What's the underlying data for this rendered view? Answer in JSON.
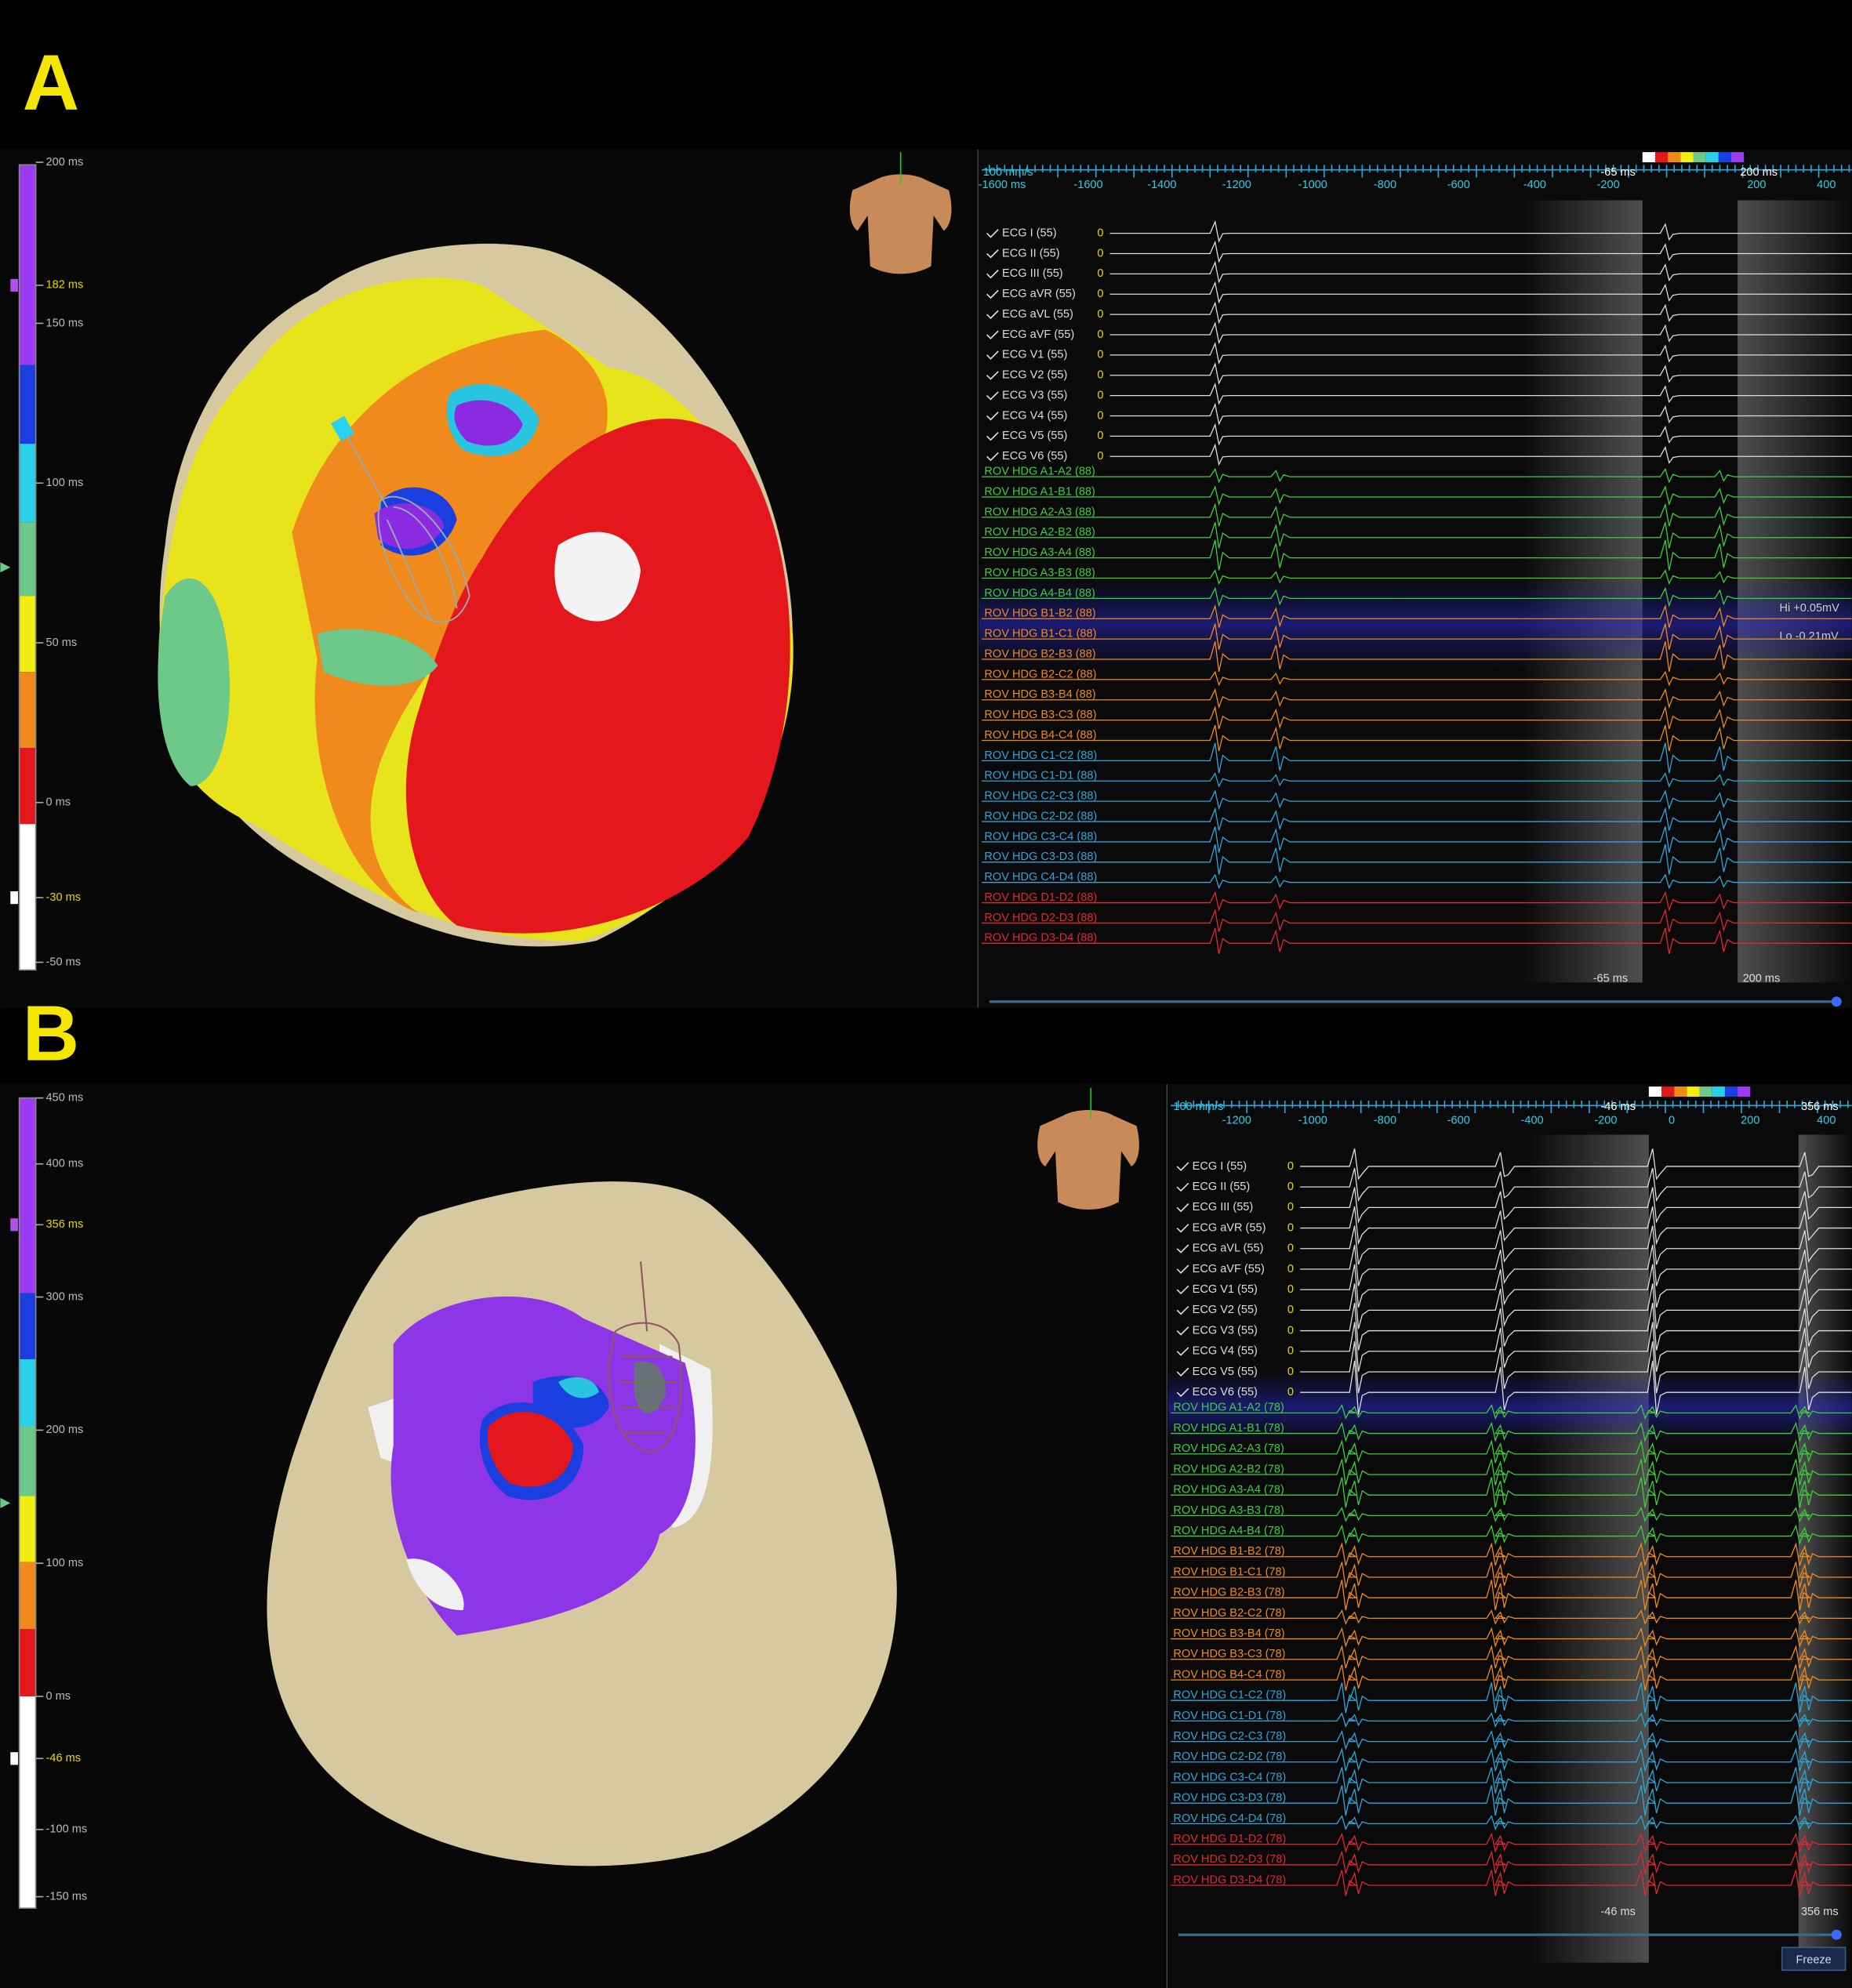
{
  "panels": [
    {
      "label": "A",
      "scale": [
        "200 ms",
        "182 ms",
        "150 ms",
        "100 ms",
        "50 ms",
        "0 ms",
        "-30 ms",
        "-50 ms"
      ],
      "speed": "100 mm/s",
      "time_ticks": [
        "-1600 ms",
        "-1600",
        "-1400",
        "-1200",
        "-1000",
        "-800",
        "-600",
        "-400",
        "-200",
        "200",
        "400"
      ],
      "window": [
        "-65 ms",
        "200 ms"
      ],
      "hi": "Hi +0.05mV",
      "lo": "Lo -0.21mV",
      "ecg_leads": [
        "ECG I (55)",
        "ECG II (55)",
        "ECG III (55)",
        "ECG aVR (55)",
        "ECG aVL (55)",
        "ECG aVF (55)",
        "ECG V1 (55)",
        "ECG V2 (55)",
        "ECG V3 (55)",
        "ECG V4 (55)",
        "ECG V5 (55)",
        "ECG V6 (55)"
      ],
      "ecg_offset": "0",
      "rov_leads": [
        "ROV HDG A1-A2 (88)",
        "ROV HDG A1-B1 (88)",
        "ROV HDG A2-A3 (88)",
        "ROV HDG A2-B2 (88)",
        "ROV HDG A3-A4 (88)",
        "ROV HDG A3-B3 (88)",
        "ROV HDG A4-B4 (88)",
        "ROV HDG B1-B2 (88)",
        "ROV HDG B1-C1 (88)",
        "ROV HDG B2-B3 (88)",
        "ROV HDG B2-C2 (88)",
        "ROV HDG B3-B4 (88)",
        "ROV HDG B3-C3 (88)",
        "ROV HDG B4-C4 (88)",
        "ROV HDG C1-C2 (88)",
        "ROV HDG C1-D1 (88)",
        "ROV HDG C2-C3 (88)",
        "ROV HDG C2-D2 (88)",
        "ROV HDG C3-C4 (88)",
        "ROV HDG C3-D3 (88)",
        "ROV HDG C4-D4 (88)",
        "ROV HDG D1-D2 (88)",
        "ROV HDG D2-D3 (88)",
        "ROV HDG D3-D4 (88)"
      ]
    },
    {
      "label": "B",
      "scale": [
        "450 ms",
        "400 ms",
        "356 ms",
        "300 ms",
        "200 ms",
        "100 ms",
        "0 ms",
        "-46 ms",
        "-100 ms",
        "-150 ms"
      ],
      "speed": "100 mm/s",
      "time_ticks": [
        "-1200",
        "-1000",
        "-800",
        "-600",
        "-400",
        "-200",
        "0",
        "200",
        "400"
      ],
      "window": [
        "-46 ms",
        "356 ms"
      ],
      "ecg_leads": [
        "ECG I (55)",
        "ECG II (55)",
        "ECG III (55)",
        "ECG aVR (55)",
        "ECG aVL (55)",
        "ECG aVF (55)",
        "ECG V1 (55)",
        "ECG V2 (55)",
        "ECG V3 (55)",
        "ECG V4 (55)",
        "ECG V5 (55)",
        "ECG V6 (55)"
      ],
      "ecg_offset": "0",
      "rov_leads": [
        "ROV HDG A1-A2 (78)",
        "ROV HDG A1-B1 (78)",
        "ROV HDG A2-A3 (78)",
        "ROV HDG A2-B2 (78)",
        "ROV HDG A3-A4 (78)",
        "ROV HDG A3-B3 (78)",
        "ROV HDG A4-B4 (78)",
        "ROV HDG B1-B2 (78)",
        "ROV HDG B1-C1 (78)",
        "ROV HDG B2-B3 (78)",
        "ROV HDG B2-C2 (78)",
        "ROV HDG B3-B4 (78)",
        "ROV HDG B3-C3 (78)",
        "ROV HDG B4-C4 (78)",
        "ROV HDG C1-C2 (78)",
        "ROV HDG C1-D1 (78)",
        "ROV HDG C2-C3 (78)",
        "ROV HDG C2-D2 (78)",
        "ROV HDG C3-C4 (78)",
        "ROV HDG C3-D3 (78)",
        "ROV HDG C4-D4 (78)",
        "ROV HDG D1-D2 (78)",
        "ROV HDG D2-D3 (78)",
        "ROV HDG D3-D4 (78)"
      ],
      "button": "Freeze"
    }
  ]
}
